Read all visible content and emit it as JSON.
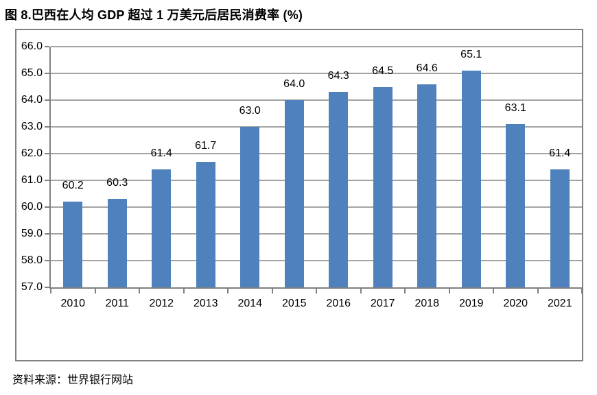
{
  "page": {
    "title": "图 8.巴西在人均 GDP 超过 1 万美元后居民消费率 (%)",
    "source": "资料来源：世界银行网站"
  },
  "chart_data": {
    "type": "bar",
    "title": "图 8.巴西在人均 GDP 超过 1 万美元后居民消费率 (%)",
    "categories": [
      "2010",
      "2011",
      "2012",
      "2013",
      "2014",
      "2015",
      "2016",
      "2017",
      "2018",
      "2019",
      "2020",
      "2021"
    ],
    "values": [
      60.2,
      60.3,
      61.4,
      61.7,
      63.0,
      64.0,
      64.3,
      64.5,
      64.6,
      65.1,
      63.1,
      61.4
    ],
    "xlabel": "",
    "ylabel": "",
    "ylim": [
      57.0,
      66.0
    ],
    "ytick_step": 1.0,
    "ytick_labels": [
      "57.0",
      "58.0",
      "59.0",
      "60.0",
      "61.0",
      "62.0",
      "63.0",
      "64.0",
      "65.0",
      "66.0"
    ],
    "grid": true,
    "data_labels": true,
    "legend": "none",
    "colors": {
      "bar": "#4F81BD",
      "gridline": "#A3A3A3",
      "axis": "#808080",
      "frame_border": "#808080",
      "text": "#000000",
      "background": "#FFFFFF"
    }
  }
}
